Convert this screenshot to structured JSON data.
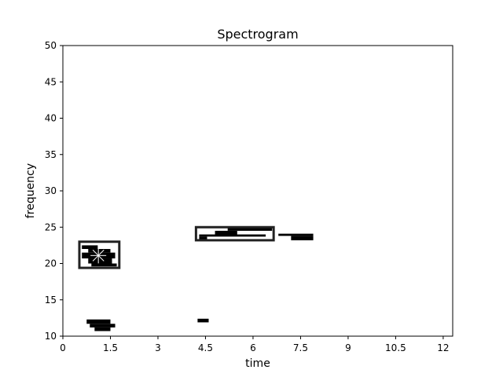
{
  "chart_data": {
    "type": "heatmap",
    "title": "Spectrogram",
    "xlabel": "time",
    "ylabel": "frequency",
    "xlim": [
      0,
      12.3
    ],
    "ylim": [
      10,
      50
    ],
    "xticks": [
      {
        "value": 0,
        "label": "0"
      },
      {
        "value": 1.5,
        "label": "1.5"
      },
      {
        "value": 3,
        "label": "3"
      },
      {
        "value": 4.5,
        "label": "4.5"
      },
      {
        "value": 6,
        "label": "6"
      },
      {
        "value": 7.5,
        "label": "7.5"
      },
      {
        "value": 9,
        "label": "9"
      },
      {
        "value": 10.5,
        "label": "10.5"
      },
      {
        "value": 12,
        "label": "12"
      }
    ],
    "yticks": [
      {
        "value": 10,
        "label": "10"
      },
      {
        "value": 15,
        "label": "15"
      },
      {
        "value": 20,
        "label": "20"
      },
      {
        "value": 25,
        "label": "25"
      },
      {
        "value": 30,
        "label": "30"
      },
      {
        "value": 35,
        "label": "35"
      },
      {
        "value": 40,
        "label": "40"
      },
      {
        "value": 45,
        "label": "45"
      },
      {
        "value": 50,
        "label": "50"
      }
    ],
    "grid": false,
    "cell_color": "#000000",
    "cells": [
      {
        "t0": 0.6,
        "t1": 1.1,
        "f0": 22.0,
        "f1": 22.5
      },
      {
        "t0": 0.8,
        "t1": 1.5,
        "f0": 21.5,
        "f1": 22.0
      },
      {
        "t0": 0.6,
        "t1": 1.65,
        "f0": 20.7,
        "f1": 21.5
      },
      {
        "t0": 0.8,
        "t1": 1.55,
        "f0": 20.0,
        "f1": 20.7
      },
      {
        "t0": 0.9,
        "t1": 1.7,
        "f0": 19.6,
        "f1": 20.0
      },
      {
        "t0": 0.75,
        "t1": 1.5,
        "f0": 11.7,
        "f1": 12.3
      },
      {
        "t0": 0.85,
        "t1": 1.65,
        "f0": 11.2,
        "f1": 11.7
      },
      {
        "t0": 1.0,
        "t1": 1.5,
        "f0": 10.7,
        "f1": 11.2
      },
      {
        "t0": 5.2,
        "t1": 6.6,
        "f0": 24.5,
        "f1": 25.0
      },
      {
        "t0": 4.8,
        "t1": 5.5,
        "f0": 24.0,
        "f1": 24.5
      },
      {
        "t0": 4.3,
        "t1": 6.4,
        "f0": 23.7,
        "f1": 24.0
      },
      {
        "t0": 4.3,
        "t1": 4.55,
        "f0": 23.3,
        "f1": 23.7
      },
      {
        "t0": 6.8,
        "t1": 7.9,
        "f0": 23.8,
        "f1": 24.1
      },
      {
        "t0": 7.2,
        "t1": 7.9,
        "f0": 23.2,
        "f1": 23.8
      },
      {
        "t0": 4.25,
        "t1": 4.6,
        "f0": 11.9,
        "f1": 12.4
      }
    ],
    "annotations": [
      {
        "shape": "rect",
        "t0": 0.52,
        "t1": 1.78,
        "f0": 19.4,
        "f1": 23.0
      },
      {
        "shape": "rect",
        "t0": 4.2,
        "t1": 6.65,
        "f0": 23.2,
        "f1": 25.0
      },
      {
        "shape": "star",
        "t": 1.12,
        "f": 21.1
      }
    ]
  }
}
